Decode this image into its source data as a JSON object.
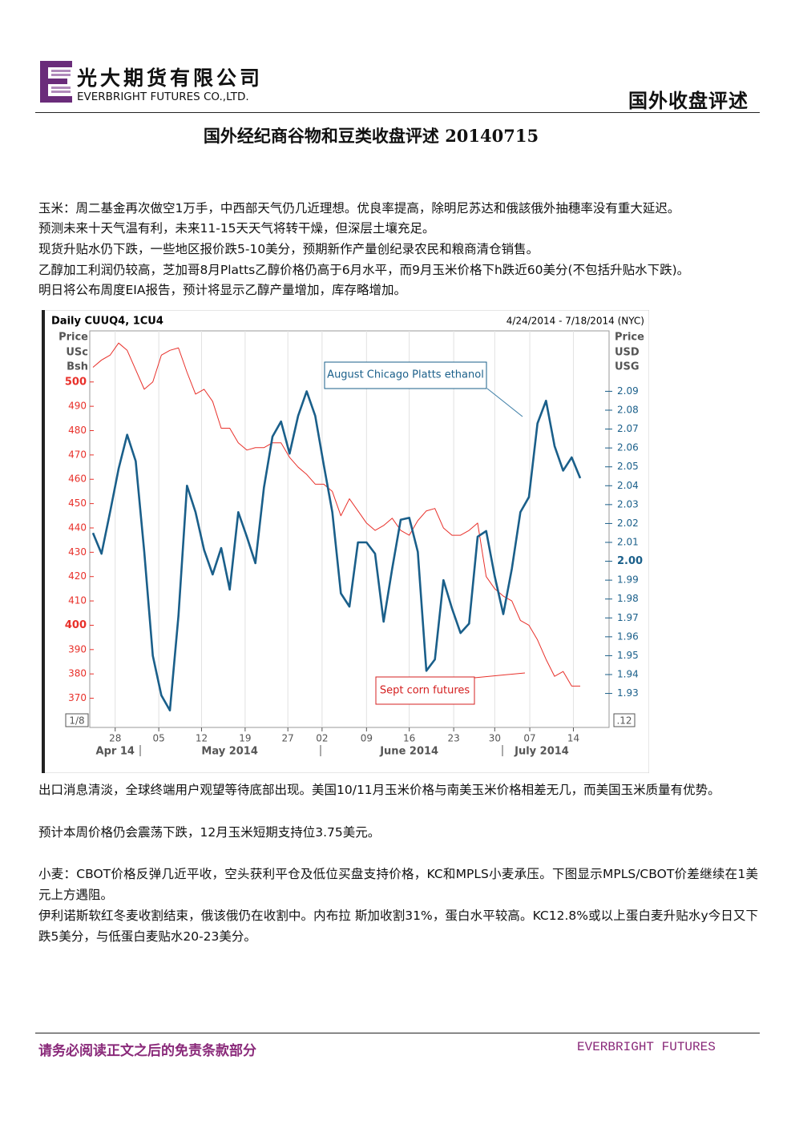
{
  "header": {
    "company_cn": "光大期货有限公司",
    "company_en": "EVERBRIGHT FUTURES CO.,LTD.",
    "section": "国外收盘评述"
  },
  "title": "国外经纪商谷物和豆类收盘评述 20140715",
  "paragraphs_before": [
    "玉米：周二基金再次做空1万手，中西部天气仍几近理想。优良率提高，除明尼苏达和俄該俄外抽穗率没有重大延迟。",
    "预测未来十天气温有利，未来11-15天天气将转干燥，但深层土壤充足。",
    "现货升贴水仍下跌，一些地区报价跌5-10美分，预期新作产量创纪录农民和粮商清仓销售。",
    "乙醇加工利润仍较高，芝加哥8月Platts乙醇价格仍高于6月水平，而9月玉米价格下h跌近60美分(不包括升贴水下跌)。",
    "明日将公布周度EIA报告，预计将显示乙醇产量增加，库存略增加。"
  ],
  "chart": {
    "type": "line",
    "title": "Daily CUUQ4, 1CU4",
    "subtitle": "4/24/2014 - 7/18/2014 (NYC)",
    "ylabel": [
      "Price",
      "USc",
      "Bsh"
    ],
    "y2label": [
      "Price",
      "USD",
      "USG"
    ],
    "corner_left": "1/8",
    "corner_right": ".12",
    "xlim": [
      0,
      57
    ],
    "xticks": [
      {
        "value": 2.6,
        "label": "28"
      },
      {
        "value": 7.7,
        "label": "05"
      },
      {
        "value": 12.7,
        "label": "12"
      },
      {
        "value": 17.8,
        "label": "19"
      },
      {
        "value": 22.8,
        "label": "27"
      },
      {
        "value": 26.8,
        "label": "02"
      },
      {
        "value": 32,
        "label": "09"
      },
      {
        "value": 37,
        "label": "16"
      },
      {
        "value": 42.2,
        "label": "23"
      },
      {
        "value": 47,
        "label": "30"
      },
      {
        "value": 51.1,
        "label": "07"
      },
      {
        "value": 56.2,
        "label": "14"
      }
    ],
    "months": [
      {
        "value": 2.6,
        "label": "Apr 14"
      },
      {
        "value": 16,
        "label": "May 2014"
      },
      {
        "value": 37,
        "label": "June 2014"
      },
      {
        "value": 52.5,
        "label": "July 2014"
      }
    ],
    "ylim": [
      358,
      521
    ],
    "yticks": [
      370,
      380,
      390,
      400,
      410,
      420,
      430,
      440,
      450,
      460,
      470,
      480,
      490,
      500
    ],
    "y2lim": [
      1.912,
      2.122
    ],
    "y2ticks": [
      1.93,
      1.94,
      1.95,
      1.96,
      1.97,
      1.98,
      1.99,
      {
        "value": 2,
        "label": "2.00"
      },
      2.01,
      2.02,
      2.03,
      2.04,
      2.05,
      2.06,
      2.07,
      2.08,
      2.09
    ],
    "grid": true,
    "series": [
      {
        "color": "#e8302a",
        "values": [
          506,
          509,
          511,
          516,
          513,
          505,
          497,
          500,
          511,
          513,
          514,
          504,
          495,
          497,
          492,
          481,
          481,
          475,
          472,
          473,
          473,
          475,
          475,
          469,
          465,
          462,
          458,
          458,
          455,
          445,
          452,
          447,
          442,
          439,
          441,
          444,
          439,
          437,
          443,
          447,
          448,
          440,
          437,
          437,
          439,
          442,
          420,
          415,
          412,
          410,
          402,
          400,
          394,
          386,
          379,
          381,
          375,
          375
        ]
      },
      {
        "color": "#1a5f8a",
        "axis": "y2",
        "values": [
          2.015,
          2.004,
          2.026,
          2.049,
          2.067,
          2.053,
          2.005,
          1.95,
          1.929,
          1.921,
          1.971,
          2.04,
          2.026,
          2.006,
          1.993,
          2.007,
          1.985,
          2.026,
          2.013,
          1.999,
          2.039,
          2.066,
          2.074,
          2.057,
          2.077,
          2.09,
          2.077,
          2.051,
          2.026,
          1.983,
          1.976,
          2.01,
          2.01,
          2.004,
          1.968,
          1.996,
          2.022,
          2.023,
          2.005,
          1.942,
          1.948,
          1.99,
          1.975,
          1.962,
          1.967,
          2.013,
          2.016,
          1.992,
          1.972,
          1.996,
          2.026,
          2.034,
          2.073,
          2.085,
          2.061,
          2.048,
          2.055,
          2.044
        ]
      }
    ],
    "annotations": [
      "August Chicago Platts ethanol",
      "Sept corn futures"
    ]
  },
  "paragraphs_after": [
    "出口消息清淡，全球终端用户观望等待底部出现。美国10/11月玉米价格与南美玉米价格相差无几，而美国玉米质量有优势。",
    "预计本周价格仍会震荡下跌，12月玉米短期支持位3.75美元。",
    "小麦：CBOT价格反弹几近平收，空头获利平仓及低位买盘支持价格，KC和MPLS小麦承压。下图显示MPLS/CBOT价差继续在1美元上方遇阻。",
    "伊利诺斯软红冬麦收割结束，俄该俄仍在收割中。内布拉 斯加收割31%，蛋白水平较高。KC12.8%或以上蛋白麦升贴水y今日又下跌5美分，与低蛋白麦贴水20-23美分。"
  ],
  "footer": {
    "disclaimer": "请务必阅读正文之后的免责条款部分",
    "brand": "EVERBRIGHT FUTURES"
  }
}
